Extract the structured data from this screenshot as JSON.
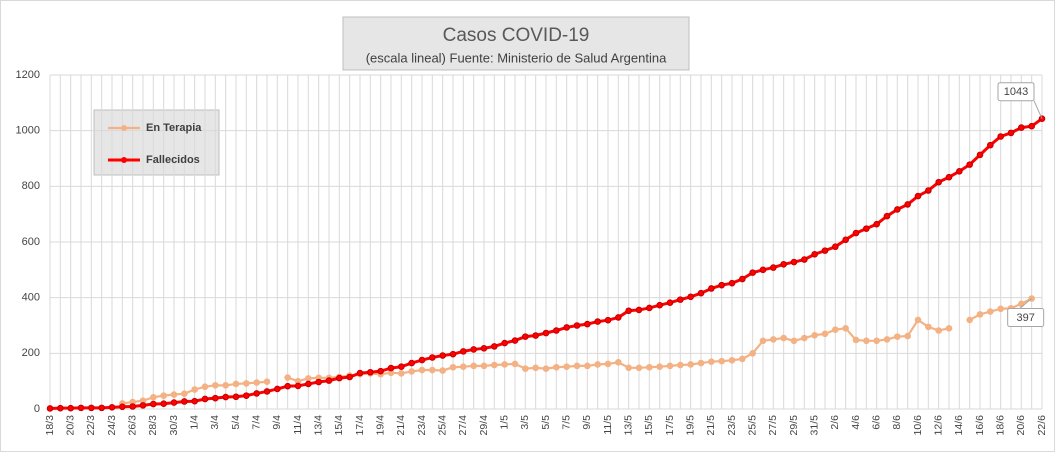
{
  "chart_data": {
    "type": "line",
    "title": "Casos COVID-19",
    "subtitle": "(escala lineal) Fuente: Ministerio de Salud Argentina",
    "categories": [
      "18/3",
      null,
      "20/3",
      null,
      "22/3",
      null,
      "24/3",
      null,
      "26/3",
      null,
      "28/3",
      null,
      "30/3",
      null,
      "1/4",
      null,
      "3/4",
      null,
      "5/4",
      null,
      "7/4",
      null,
      "9/4",
      null,
      "11/4",
      null,
      "13/4",
      null,
      "15/4",
      null,
      "17/4",
      null,
      "19/4",
      null,
      "21/4",
      null,
      "23/4",
      null,
      "25/4",
      null,
      "27/4",
      null,
      "29/4",
      null,
      "1/5",
      null,
      "3/5",
      null,
      "5/5",
      null,
      "7/5",
      null,
      "9/5",
      null,
      "11/5",
      null,
      "13/5",
      null,
      "15/5",
      null,
      "17/5",
      null,
      "19/5",
      null,
      "21/5",
      null,
      "23/5",
      null,
      "25/5",
      null,
      "27/5",
      null,
      "29/5",
      null,
      "31/5",
      null,
      "2/6",
      null,
      "4/6",
      null,
      "6/6",
      null,
      "8/6",
      null,
      "10/6",
      null,
      "12/6",
      null,
      "14/6",
      null,
      "16/6",
      null,
      "18/6",
      null,
      "20/6",
      null,
      "22/6"
    ],
    "series": [
      {
        "name": "En Terapia",
        "color": "#f4b183",
        "values": [
          null,
          null,
          null,
          null,
          null,
          null,
          null,
          20,
          25,
          30,
          42,
          48,
          52,
          55,
          70,
          80,
          85,
          85,
          90,
          92,
          95,
          98,
          null,
          113,
          100,
          110,
          112,
          112,
          115,
          120,
          125,
          128,
          125,
          130,
          128,
          135,
          140,
          140,
          138,
          150,
          152,
          155,
          155,
          158,
          160,
          162,
          145,
          148,
          145,
          150,
          152,
          155,
          155,
          160,
          162,
          168,
          148,
          148,
          150,
          152,
          155,
          158,
          160,
          165,
          170,
          172,
          175,
          180,
          200,
          245,
          250,
          255,
          245,
          255,
          265,
          270,
          285,
          290,
          248,
          245,
          245,
          250,
          260,
          262,
          320,
          295,
          282,
          290,
          null,
          320,
          340,
          350,
          360,
          362,
          378,
          397,
          null
        ]
      },
      {
        "name": "Fallecidos",
        "color": "#ff0000",
        "values": [
          2,
          3,
          3,
          4,
          4,
          4,
          6,
          8,
          9,
          13,
          18,
          19,
          23,
          27,
          28,
          36,
          39,
          43,
          44,
          48,
          56,
          63,
          72,
          82,
          83,
          90,
          97,
          102,
          111,
          115,
          129,
          132,
          136,
          147,
          152,
          165,
          176,
          185,
          192,
          197,
          207,
          214,
          218,
          225,
          237,
          246,
          260,
          264,
          273,
          282,
          293,
          300,
          305,
          314,
          319,
          329,
          353,
          356,
          363,
          373,
          382,
          393,
          403,
          416,
          433,
          445,
          452,
          467,
          490,
          500,
          508,
          520,
          528,
          537,
          556,
          569,
          583,
          608,
          632,
          648,
          664,
          693,
          717,
          735,
          765,
          785,
          815,
          833,
          854,
          878,
          913,
          948,
          979,
          992,
          1011,
          1016,
          1043
        ]
      }
    ],
    "ylim": [
      0,
      1200
    ],
    "yticks": [
      0,
      200,
      400,
      600,
      800,
      1000,
      1200
    ],
    "grid": true
  }
}
